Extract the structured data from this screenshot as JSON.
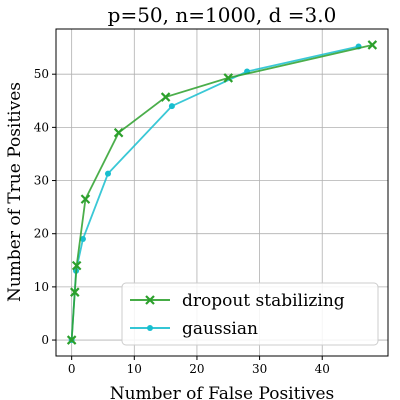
{
  "chart_data": {
    "type": "line",
    "title": "p=50, n=1000, d =3.0",
    "xlabel": "Number of False Positives",
    "ylabel": "Number of True Positives",
    "xlim": [
      -2.5,
      50.5
    ],
    "ylim": [
      -3,
      58.5
    ],
    "xticks": [
      0,
      10,
      20,
      30,
      40
    ],
    "yticks": [
      0,
      10,
      20,
      30,
      40,
      50
    ],
    "grid": true,
    "legend_position": "lower-right",
    "series": [
      {
        "name": "dropout stabilizing",
        "color": "#2ca02c",
        "marker": "x",
        "x": [
          0,
          0.5,
          0.8,
          2.2,
          7.5,
          15,
          25,
          48
        ],
        "y": [
          0,
          9,
          14,
          26.5,
          39,
          45.7,
          49.3,
          55.5
        ]
      },
      {
        "name": "gaussian",
        "color": "#17becf",
        "marker": "circle",
        "x": [
          0,
          0.7,
          1.8,
          5.8,
          16,
          28,
          45.8
        ],
        "y": [
          0,
          13,
          19,
          31.3,
          44,
          50.5,
          55.2
        ]
      }
    ]
  }
}
